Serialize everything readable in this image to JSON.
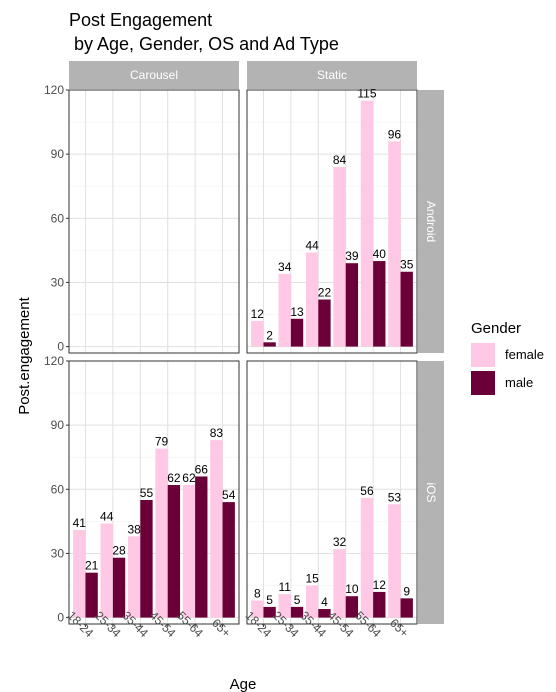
{
  "chart_data": {
    "type": "bar",
    "title_line1": "Post Engagement",
    "title_line2": " by Age, Gender, OS and Ad Type",
    "xlabel": "Age",
    "ylabel": "Post.engagement",
    "categories": [
      "18-24",
      "25-34",
      "35-44",
      "45-54",
      "55-64",
      "65+"
    ],
    "y_ticks": [
      0,
      30,
      60,
      90,
      120
    ],
    "ylim": [
      -3,
      120
    ],
    "columns": [
      "Carousel",
      "Static"
    ],
    "rows": [
      "Android",
      "iOS"
    ],
    "grid": true,
    "legend": {
      "title": "Gender",
      "placement": "right",
      "entries": [
        {
          "name": "female",
          "color": "#ffc8e4"
        },
        {
          "name": "male",
          "color": "#6b0038"
        }
      ]
    },
    "panels": [
      {
        "column": "Carousel",
        "row": "Android",
        "female": [],
        "male": []
      },
      {
        "column": "Static",
        "row": "Android",
        "female": [
          12,
          34,
          44,
          84,
          115,
          96
        ],
        "male": [
          2,
          13,
          22,
          39,
          40,
          35
        ]
      },
      {
        "column": "Carousel",
        "row": "iOS",
        "female": [
          41,
          44,
          38,
          79,
          62,
          83
        ],
        "male": [
          21,
          28,
          55,
          62,
          66,
          54
        ]
      },
      {
        "column": "Static",
        "row": "iOS",
        "female": [
          8,
          11,
          15,
          32,
          56,
          53
        ],
        "male": [
          5,
          5,
          4,
          10,
          12,
          9
        ]
      }
    ]
  }
}
